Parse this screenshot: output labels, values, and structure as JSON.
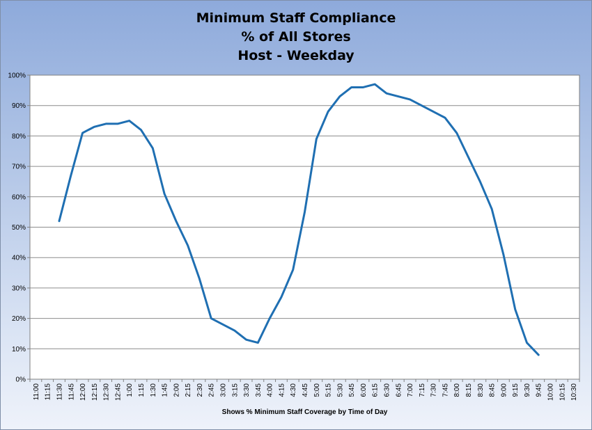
{
  "chart_data": {
    "type": "line",
    "title": "Minimum Staff Compliance",
    "subtitle_lines": [
      "% of All Stores",
      "Host - Weekday"
    ],
    "xlabel": "Shows % Minimum Staff Coverage by Time of Day",
    "ylabel": "",
    "ylim": [
      0,
      100
    ],
    "y_ticks": [
      "0%",
      "10%",
      "20%",
      "30%",
      "40%",
      "50%",
      "60%",
      "70%",
      "80%",
      "90%",
      "100%"
    ],
    "grid": true,
    "legend": "none",
    "line_color": "#1f6fb2",
    "categories": [
      "11:00",
      "11:15",
      "11:30",
      "11:45",
      "12:00",
      "12:15",
      "12:30",
      "12:45",
      "1:00",
      "1:15",
      "1:30",
      "1:45",
      "2:00",
      "2:15",
      "2:30",
      "2:45",
      "3:00",
      "3:15",
      "3:30",
      "3:45",
      "4:00",
      "4:15",
      "4:30",
      "4:45",
      "5:00",
      "5:15",
      "5:30",
      "5:45",
      "6:00",
      "6:15",
      "6:30",
      "6:45",
      "7:00",
      "7:15",
      "7:30",
      "7:45",
      "8:00",
      "8:15",
      "8:30",
      "8:45",
      "9:00",
      "9:15",
      "9:30",
      "9:45",
      "10:00",
      "10:15",
      "10:30"
    ],
    "series": [
      {
        "values": [
          null,
          null,
          52,
          67,
          81,
          83,
          84,
          84,
          85,
          82,
          76,
          61,
          52,
          44,
          33,
          20,
          18,
          16,
          13,
          12,
          20,
          27,
          36,
          55,
          79,
          88,
          93,
          96,
          96,
          97,
          94,
          93,
          92,
          90,
          88,
          86,
          81,
          73,
          65,
          56,
          41,
          23,
          12,
          8,
          null,
          null,
          null
        ]
      }
    ]
  }
}
